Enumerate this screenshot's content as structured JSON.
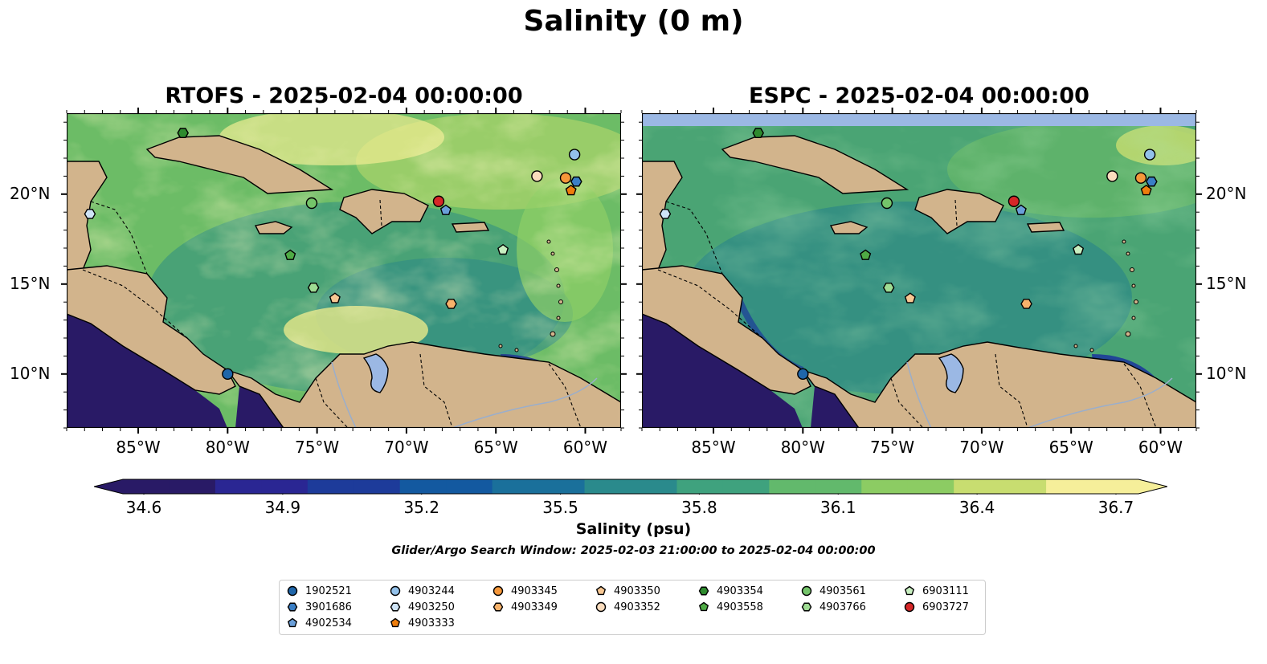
{
  "title": "Salinity (0 m)",
  "panels": [
    {
      "title": "RTOFS - 2025-02-04 00:00:00"
    },
    {
      "title": "ESPC - 2025-02-04 00:00:00"
    }
  ],
  "lon_ticks": [
    "85°W",
    "80°W",
    "75°W",
    "70°W",
    "65°W",
    "60°W"
  ],
  "lat_ticks": [
    "20°N",
    "15°N",
    "10°N"
  ],
  "colorbar": {
    "label": "Salinity (psu)",
    "ticks": [
      "34.6",
      "34.9",
      "35.2",
      "35.5",
      "35.8",
      "36.1",
      "36.4",
      "36.7"
    ],
    "min": 34.6,
    "max": 36.7,
    "extend": "both",
    "colormap": [
      "#291a66",
      "#2a2693",
      "#1d3b9a",
      "#1359a0",
      "#1a709b",
      "#2a8a8c",
      "#3fa27e",
      "#62b96c",
      "#8ccc63",
      "#c8dd70",
      "#f6ef9a"
    ]
  },
  "search_window": "Glider/Argo Search Window: 2025-02-03 21:00:00 to 2025-02-04 00:00:00",
  "map_extent": {
    "lon": [
      -89,
      -58
    ],
    "lat": [
      7,
      24.5
    ]
  },
  "land_color": "#d2b48c",
  "lake_color": "#9bb8e4",
  "floats": [
    {
      "id": "1902521",
      "marker": "circle",
      "color": "#1f66aa",
      "lon": -80.0,
      "lat": 10.0
    },
    {
      "id": "3901686",
      "marker": "hexagon",
      "color": "#3a7fc6",
      "lon": -60.5,
      "lat": 20.7
    },
    {
      "id": "4902534",
      "marker": "pentagon",
      "color": "#6a9fd9",
      "lon": -67.8,
      "lat": 19.1
    },
    {
      "id": "4903244",
      "marker": "circle",
      "color": "#93c1ea",
      "lon": -60.6,
      "lat": 22.2
    },
    {
      "id": "4903250",
      "marker": "hexagon",
      "color": "#cfe4f7",
      "lon": -87.7,
      "lat": 18.9
    },
    {
      "id": "4903333",
      "marker": "pentagon",
      "color": "#ee7d0c",
      "lon": -60.8,
      "lat": 20.2
    },
    {
      "id": "4903345",
      "marker": "circle",
      "color": "#f5973a",
      "lon": -61.1,
      "lat": 20.9
    },
    {
      "id": "4903349",
      "marker": "hexagon",
      "color": "#f7b26b",
      "lon": -67.5,
      "lat": 13.9
    },
    {
      "id": "4903350",
      "marker": "pentagon",
      "color": "#f8c793",
      "lon": -74.0,
      "lat": 14.2
    },
    {
      "id": "4903352",
      "marker": "circle",
      "color": "#fadcbd",
      "lon": -62.7,
      "lat": 21.0
    },
    {
      "id": "4903354",
      "marker": "hexagon",
      "color": "#2e8b2e",
      "lon": -82.5,
      "lat": 23.4
    },
    {
      "id": "4903558",
      "marker": "pentagon",
      "color": "#4fab45",
      "lon": -76.5,
      "lat": 16.6
    },
    {
      "id": "4903561",
      "marker": "circle",
      "color": "#74c46a",
      "lon": -75.3,
      "lat": 19.5
    },
    {
      "id": "4903766",
      "marker": "hexagon",
      "color": "#9fdc93",
      "lon": -75.2,
      "lat": 14.8
    },
    {
      "id": "6903111",
      "marker": "pentagon",
      "color": "#c8efc0",
      "lon": -64.6,
      "lat": 16.9
    },
    {
      "id": "6903727",
      "marker": "circle",
      "color": "#d62728",
      "lon": -68.2,
      "lat": 19.6
    }
  ]
}
